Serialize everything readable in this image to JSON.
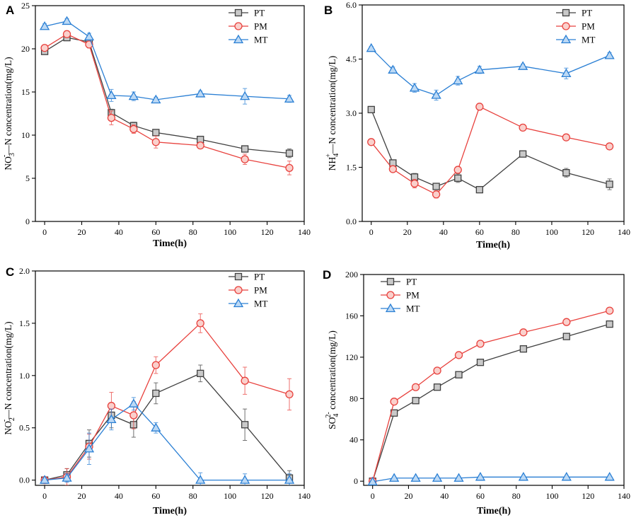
{
  "colors": {
    "PT": "#404040",
    "PM": "#e8413d",
    "MT": "#2a7fd4",
    "PT_fill": "#c9c9c9",
    "PM_fill": "#fad0cc",
    "MT_fill": "#bcd9f5"
  },
  "chart_data": [
    {
      "id": "A",
      "type": "line",
      "panel_label": "A",
      "xlabel": "Time(h)",
      "ylabel": {
        "pre": "NO",
        "sub": "3",
        "sup": "-",
        "post": "—N concentration(mg/L)"
      },
      "xlim": [
        -5,
        140
      ],
      "ylim": [
        0,
        25
      ],
      "xticks": [
        0,
        20,
        40,
        60,
        80,
        100,
        120,
        140
      ],
      "xtick_labels": [
        "0",
        "20",
        "40",
        "60",
        "80",
        "100",
        "120",
        "140"
      ],
      "yticks": [
        0,
        5,
        10,
        15,
        20,
        25
      ],
      "ytick_labels": [
        "0",
        "5",
        "10",
        "15",
        "20",
        "25"
      ],
      "x": [
        0,
        12,
        24,
        36,
        48,
        60,
        84,
        108,
        132
      ],
      "series": [
        {
          "name": "PT",
          "marker": "square",
          "values": [
            19.7,
            21.3,
            20.8,
            12.6,
            11.1,
            10.3,
            9.5,
            8.4,
            7.9
          ],
          "errors": [
            0.3,
            0.3,
            0.4,
            0.4,
            0.4,
            0.3,
            0.3,
            0.3,
            0.5
          ]
        },
        {
          "name": "PM",
          "marker": "circle",
          "values": [
            20.1,
            21.7,
            20.5,
            12.0,
            10.7,
            9.2,
            8.8,
            7.2,
            6.2
          ],
          "errors": [
            0.3,
            0.4,
            0.4,
            0.8,
            0.5,
            0.7,
            0.3,
            0.6,
            0.8
          ]
        },
        {
          "name": "MT",
          "marker": "triangle",
          "values": [
            22.6,
            23.2,
            21.4,
            14.6,
            14.5,
            14.1,
            14.8,
            14.5,
            14.2
          ],
          "errors": [
            0.3,
            0.3,
            0.4,
            0.7,
            0.5,
            0.3,
            0.3,
            0.9,
            0.4
          ]
        }
      ],
      "legend": {
        "position": "top-right",
        "entries": [
          "PT",
          "PM",
          "MT"
        ]
      }
    },
    {
      "id": "B",
      "type": "line",
      "panel_label": "B",
      "xlabel": "Time(h)",
      "ylabel": {
        "pre": "NH",
        "sub": "4",
        "sup": "+",
        "post": "—N  concentration(mg/L)"
      },
      "xlim": [
        -5,
        140
      ],
      "ylim": [
        0,
        6
      ],
      "xticks": [
        0,
        20,
        40,
        60,
        80,
        100,
        120,
        140
      ],
      "xtick_labels": [
        "0",
        "20",
        "40",
        "60",
        "80",
        "100",
        "120",
        "140"
      ],
      "yticks": [
        0,
        1.5,
        3,
        4.5,
        6
      ],
      "ytick_labels": [
        "0.0",
        "1.5",
        "3.0",
        "4.5",
        "6.0"
      ],
      "x": [
        0,
        12,
        24,
        36,
        48,
        60,
        84,
        108,
        132
      ],
      "series": [
        {
          "name": "PT",
          "marker": "square",
          "values": [
            3.1,
            1.62,
            1.23,
            0.97,
            1.2,
            0.88,
            1.87,
            1.35,
            1.03
          ],
          "errors": [
            0.05,
            0.08,
            0.1,
            0.08,
            0.12,
            0.05,
            0.05,
            0.12,
            0.15
          ]
        },
        {
          "name": "PM",
          "marker": "circle",
          "values": [
            2.2,
            1.45,
            1.05,
            0.75,
            1.43,
            3.18,
            2.6,
            2.33,
            2.08
          ],
          "errors": [
            0.05,
            0.08,
            0.12,
            0.1,
            0.05,
            0.05,
            0.05,
            0.05,
            0.05
          ]
        },
        {
          "name": "MT",
          "marker": "triangle",
          "values": [
            4.8,
            4.2,
            3.7,
            3.5,
            3.9,
            4.2,
            4.3,
            4.1,
            4.6
          ],
          "errors": [
            0.05,
            0.08,
            0.12,
            0.14,
            0.12,
            0.1,
            0.06,
            0.15,
            0.08
          ]
        }
      ],
      "legend": {
        "position": "top-right",
        "entries": [
          "PT",
          "PM",
          "MT"
        ]
      }
    },
    {
      "id": "C",
      "type": "line",
      "panel_label": "C",
      "xlabel": "Time(h)",
      "ylabel": {
        "pre": "NO",
        "sub": "2",
        "sup": "-",
        "post": "—N concentration(mg/L)"
      },
      "xlim": [
        -5,
        140
      ],
      "ylim": [
        -0.05,
        2.0
      ],
      "xticks": [
        0,
        20,
        40,
        60,
        80,
        100,
        120,
        140
      ],
      "xtick_labels": [
        "0",
        "20",
        "40",
        "60",
        "80",
        "100",
        "120",
        "140"
      ],
      "yticks": [
        0,
        0.5,
        1.0,
        1.5,
        2.0
      ],
      "ytick_labels": [
        "0.0",
        "0.5",
        "1.0",
        "1.5",
        "2.0"
      ],
      "x": [
        0,
        12,
        24,
        36,
        48,
        60,
        84,
        108,
        132
      ],
      "series": [
        {
          "name": "PT",
          "marker": "square",
          "values": [
            0.0,
            0.05,
            0.35,
            0.62,
            0.53,
            0.83,
            1.02,
            0.53,
            0.02
          ],
          "errors": [
            0.02,
            0.06,
            0.13,
            0.12,
            0.12,
            0.1,
            0.08,
            0.15,
            0.07
          ]
        },
        {
          "name": "PM",
          "marker": "circle",
          "values": [
            0.0,
            0.03,
            0.32,
            0.71,
            0.62,
            1.1,
            1.5,
            0.95,
            0.82
          ],
          "errors": [
            0.02,
            0.08,
            0.12,
            0.13,
            0.13,
            0.08,
            0.09,
            0.13,
            0.15
          ]
        },
        {
          "name": "MT",
          "marker": "triangle",
          "values": [
            0.0,
            0.02,
            0.3,
            0.58,
            0.73,
            0.5,
            0.0,
            0.0,
            0.0
          ],
          "errors": [
            0.02,
            0.04,
            0.15,
            0.1,
            0.06,
            0.05,
            0.07,
            0.06,
            0.06
          ]
        }
      ],
      "legend": {
        "position": "top-right",
        "entries": [
          "PT",
          "PM",
          "MT"
        ]
      }
    },
    {
      "id": "D",
      "type": "line",
      "panel_label": "D",
      "xlabel": "Time(h)",
      "ylabel": {
        "pre": "SO",
        "sub": "4",
        "sup": "2-",
        "post": " concentration(mg/L)"
      },
      "xlim": [
        -5,
        140
      ],
      "ylim": [
        -4,
        200
      ],
      "xticks": [
        0,
        20,
        40,
        60,
        80,
        100,
        120,
        140
      ],
      "xtick_labels": [
        "0",
        "20",
        "40",
        "60",
        "80",
        "100",
        "120",
        "140"
      ],
      "yticks": [
        0,
        40,
        80,
        120,
        160,
        200
      ],
      "ytick_labels": [
        "0",
        "40",
        "80",
        "120",
        "160",
        "200"
      ],
      "x": [
        0,
        12,
        24,
        36,
        48,
        60,
        84,
        108,
        132
      ],
      "series": [
        {
          "name": "PT",
          "marker": "square",
          "values": [
            0,
            66,
            78,
            91,
            103,
            115,
            128,
            140,
            152
          ],
          "errors": [
            0.5,
            0.8,
            0.8,
            0.8,
            0.8,
            0.8,
            0.8,
            0.8,
            0.8
          ]
        },
        {
          "name": "PM",
          "marker": "circle",
          "values": [
            0,
            77,
            91,
            107,
            122,
            133,
            144,
            154,
            165
          ],
          "errors": [
            0.5,
            0.8,
            0.8,
            0.8,
            0.8,
            0.8,
            0.8,
            0.8,
            0.8
          ]
        },
        {
          "name": "MT",
          "marker": "triangle",
          "values": [
            -0.5,
            3,
            3,
            3,
            3,
            4,
            4,
            4,
            4
          ],
          "errors": [
            0.3,
            0.5,
            0.5,
            0.5,
            0.5,
            0.5,
            0.5,
            0.5,
            0.5
          ]
        }
      ],
      "legend": {
        "position": "top-left",
        "entries": [
          "PT",
          "PM",
          "MT"
        ]
      }
    }
  ]
}
